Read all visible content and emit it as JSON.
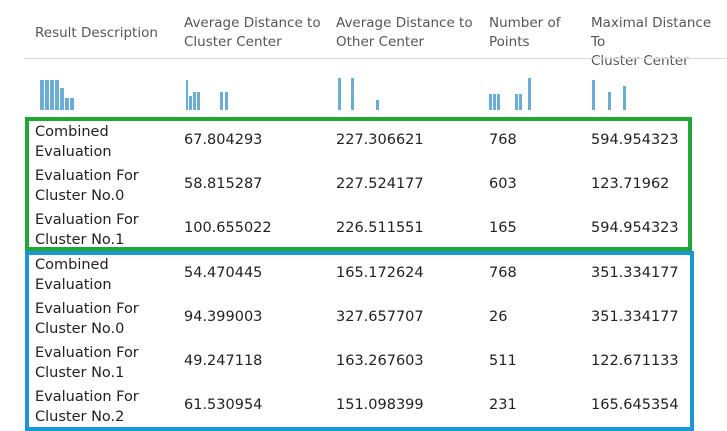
{
  "columns": [
    {
      "label": "Result Description"
    },
    {
      "label": "Average Distance to\nCluster Center"
    },
    {
      "label": "Average Distance to\nOther Center"
    },
    {
      "label": "Number of\nPoints"
    },
    {
      "label": "Maximal Distance To\nCluster Center"
    }
  ],
  "bar_color": "#6aaed6",
  "highlight_colors": {
    "group1": "#22a737",
    "group2": "#1a96d4"
  },
  "rows": [
    {
      "desc": "Combined\nEvaluation",
      "avg_cluster": "67.804293",
      "avg_other": "227.306621",
      "points": "768",
      "max_dist": "594.954323"
    },
    {
      "desc": "Evaluation For\nCluster No.0",
      "avg_cluster": "58.815287",
      "avg_other": "227.524177",
      "points": "603",
      "max_dist": "123.71962"
    },
    {
      "desc": "Evaluation For\nCluster No.1",
      "avg_cluster": "100.655022",
      "avg_other": "226.511551",
      "points": "165",
      "max_dist": "594.954323"
    },
    {
      "desc": "Combined\nEvaluation",
      "avg_cluster": "54.470445",
      "avg_other": "165.172624",
      "points": "768",
      "max_dist": "351.334177"
    },
    {
      "desc": "Evaluation For\nCluster No.0",
      "avg_cluster": "94.399003",
      "avg_other": "327.657707",
      "points": "26",
      "max_dist": "351.334177"
    },
    {
      "desc": "Evaluation For\nCluster No.1",
      "avg_cluster": "49.247118",
      "avg_other": "163.267603",
      "points": "511",
      "max_dist": "122.671133"
    },
    {
      "desc": "Evaluation For\nCluster No.2",
      "avg_cluster": "61.530954",
      "avg_other": "151.098399",
      "points": "231",
      "max_dist": "165.645354"
    }
  ]
}
